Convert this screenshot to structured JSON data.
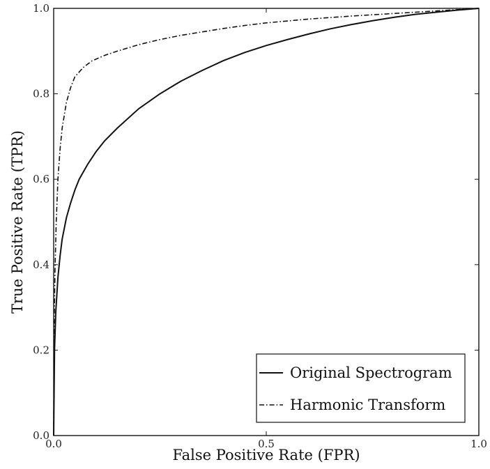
{
  "chart_data": {
    "type": "line",
    "title": "",
    "xlabel": "False Positive Rate (FPR)",
    "ylabel": "True Positive Rate (TPR)",
    "xlim": [
      0,
      1
    ],
    "ylim": [
      0,
      1
    ],
    "grid": false,
    "legend_position": "bottom-right",
    "x_ticks": [
      {
        "value": 0.0,
        "label": "0.0"
      },
      {
        "value": 0.5,
        "label": "0.5"
      },
      {
        "value": 1.0,
        "label": "1.0"
      }
    ],
    "y_ticks": [
      {
        "value": 0.0,
        "label": "0.0"
      },
      {
        "value": 0.2,
        "label": "0.2"
      },
      {
        "value": 0.4,
        "label": "0.4"
      },
      {
        "value": 0.6,
        "label": "0.6"
      },
      {
        "value": 0.8,
        "label": "0.8"
      },
      {
        "value": 1.0,
        "label": "1.0"
      }
    ],
    "series": [
      {
        "name": "Original Spectrogram",
        "line_style": "solid",
        "color": "#111111",
        "points": [
          [
            0.0,
            0.0
          ],
          [
            0.002,
            0.2
          ],
          [
            0.005,
            0.29
          ],
          [
            0.01,
            0.37
          ],
          [
            0.015,
            0.42
          ],
          [
            0.02,
            0.46
          ],
          [
            0.03,
            0.51
          ],
          [
            0.04,
            0.545
          ],
          [
            0.05,
            0.575
          ],
          [
            0.06,
            0.6
          ],
          [
            0.08,
            0.635
          ],
          [
            0.1,
            0.665
          ],
          [
            0.12,
            0.69
          ],
          [
            0.15,
            0.72
          ],
          [
            0.2,
            0.765
          ],
          [
            0.25,
            0.8
          ],
          [
            0.3,
            0.83
          ],
          [
            0.35,
            0.855
          ],
          [
            0.4,
            0.878
          ],
          [
            0.45,
            0.897
          ],
          [
            0.5,
            0.913
          ],
          [
            0.55,
            0.927
          ],
          [
            0.6,
            0.94
          ],
          [
            0.65,
            0.952
          ],
          [
            0.7,
            0.962
          ],
          [
            0.75,
            0.971
          ],
          [
            0.8,
            0.979
          ],
          [
            0.85,
            0.986
          ],
          [
            0.9,
            0.991
          ],
          [
            0.95,
            0.996
          ],
          [
            1.0,
            1.0
          ]
        ]
      },
      {
        "name": "Harmonic Transform",
        "line_style": "dash-dot",
        "color": "#111111",
        "points": [
          [
            0.0,
            0.0
          ],
          [
            0.001,
            0.25
          ],
          [
            0.003,
            0.38
          ],
          [
            0.006,
            0.5
          ],
          [
            0.01,
            0.6
          ],
          [
            0.015,
            0.67
          ],
          [
            0.02,
            0.72
          ],
          [
            0.03,
            0.78
          ],
          [
            0.04,
            0.815
          ],
          [
            0.05,
            0.84
          ],
          [
            0.07,
            0.862
          ],
          [
            0.09,
            0.877
          ],
          [
            0.12,
            0.89
          ],
          [
            0.15,
            0.9
          ],
          [
            0.2,
            0.915
          ],
          [
            0.25,
            0.927
          ],
          [
            0.3,
            0.937
          ],
          [
            0.35,
            0.945
          ],
          [
            0.4,
            0.953
          ],
          [
            0.45,
            0.96
          ],
          [
            0.5,
            0.966
          ],
          [
            0.6,
            0.975
          ],
          [
            0.7,
            0.982
          ],
          [
            0.8,
            0.988
          ],
          [
            0.9,
            0.994
          ],
          [
            1.0,
            1.0
          ]
        ]
      }
    ]
  }
}
